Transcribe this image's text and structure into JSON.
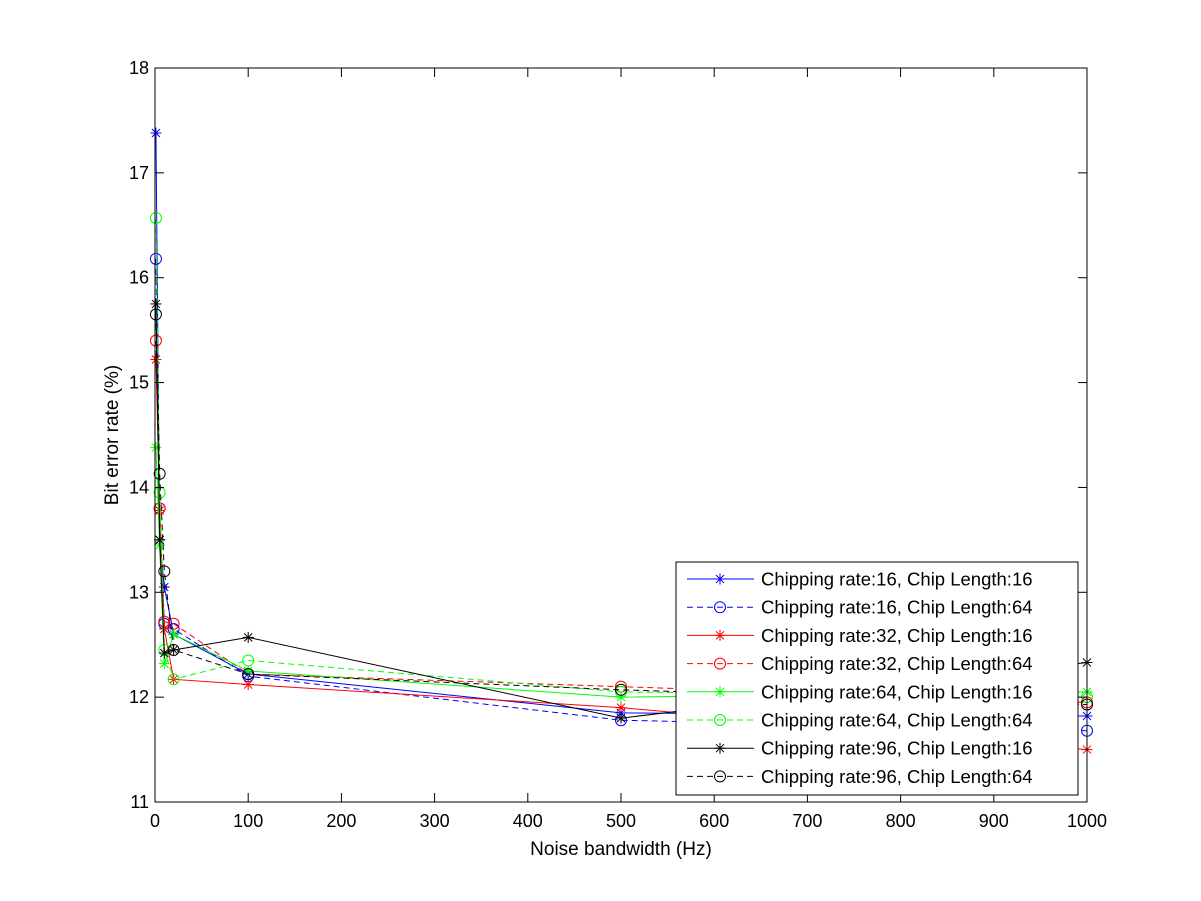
{
  "chart_data": {
    "type": "line",
    "title": "",
    "xlabel": "Noise bandwidth (Hz)",
    "ylabel": "Bit error rate (%)",
    "xlim": [
      0,
      1000
    ],
    "ylim": [
      11,
      18
    ],
    "xticks": [
      0,
      100,
      200,
      300,
      400,
      500,
      600,
      700,
      800,
      900,
      1000
    ],
    "yticks": [
      11,
      12,
      13,
      14,
      15,
      16,
      17,
      18
    ],
    "grid": false,
    "legend_position": "bottom-right",
    "x": [
      1,
      5,
      10,
      20,
      100,
      500,
      1000
    ],
    "series": [
      {
        "name": "Chipping rate:16, Chip Length:16",
        "color": "#0000ff",
        "dash": "solid",
        "marker": "star",
        "values": [
          17.38,
          13.5,
          13.05,
          12.6,
          12.22,
          11.85,
          11.82
        ]
      },
      {
        "name": "Chipping rate:16, Chip Length:64",
        "color": "#0000ff",
        "dash": "dashed",
        "marker": "circle",
        "values": [
          16.18,
          13.8,
          12.7,
          12.65,
          12.2,
          11.78,
          11.68
        ]
      },
      {
        "name": "Chipping rate:32, Chip Length:16",
        "color": "#ff0000",
        "dash": "solid",
        "marker": "star",
        "values": [
          15.22,
          13.78,
          12.65,
          12.17,
          12.12,
          11.9,
          11.5
        ]
      },
      {
        "name": "Chipping rate:32, Chip Length:64",
        "color": "#ff0000",
        "dash": "dashed",
        "marker": "circle",
        "values": [
          15.4,
          13.8,
          12.72,
          12.7,
          12.22,
          12.1,
          11.95
        ]
      },
      {
        "name": "Chipping rate:64, Chip Length:16",
        "color": "#00ff00",
        "dash": "solid",
        "marker": "star",
        "values": [
          14.38,
          13.45,
          12.32,
          12.6,
          12.25,
          12.0,
          12.05
        ]
      },
      {
        "name": "Chipping rate:64, Chip Length:64",
        "color": "#00ff00",
        "dash": "dashed",
        "marker": "circle",
        "values": [
          16.57,
          13.95,
          12.45,
          12.17,
          12.35,
          12.05,
          12.0
        ]
      },
      {
        "name": "Chipping rate:96, Chip Length:16",
        "color": "#000000",
        "dash": "solid",
        "marker": "star",
        "values": [
          15.75,
          13.5,
          12.42,
          12.45,
          12.57,
          11.8,
          12.33
        ]
      },
      {
        "name": "Chipping rate:96, Chip Length:64",
        "color": "#000000",
        "dash": "dashed",
        "marker": "circle",
        "values": [
          15.65,
          14.13,
          13.2,
          12.45,
          12.22,
          12.07,
          11.93
        ]
      }
    ]
  }
}
